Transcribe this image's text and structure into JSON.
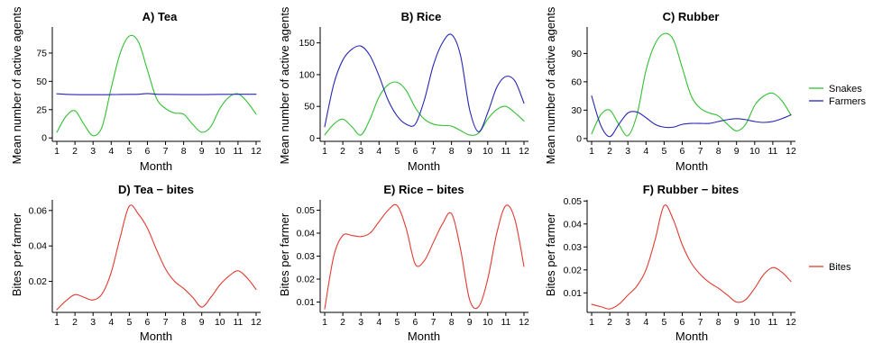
{
  "chart_data": [
    {
      "id": "tea",
      "type": "line",
      "title": "A) Tea",
      "xlabel": "Month",
      "ylabel": "Mean number of active agents",
      "x": [
        1,
        1.5,
        2,
        2.5,
        3,
        3.5,
        4,
        4.5,
        5,
        5.5,
        6,
        6.5,
        7,
        7.5,
        8,
        8.5,
        9,
        9.5,
        10,
        10.5,
        11,
        11.5,
        12
      ],
      "xticks": [
        1,
        2,
        3,
        4,
        5,
        6,
        7,
        8,
        9,
        10,
        11,
        12
      ],
      "yticks": [
        0,
        25,
        50,
        75
      ],
      "ylim": [
        -3,
        98
      ],
      "series": [
        {
          "name": "Snakes",
          "color": "#33bf33",
          "values": [
            5,
            19,
            24,
            12,
            2,
            10,
            44,
            75,
            90,
            85,
            60,
            35,
            26,
            22,
            21,
            12,
            5,
            10,
            26,
            36,
            39,
            32,
            21
          ]
        },
        {
          "name": "Farmers",
          "color": "#2626b3",
          "values": [
            39,
            38.5,
            38.3,
            38.2,
            38.2,
            38.2,
            38.3,
            38.4,
            38.5,
            38.6,
            39.2,
            38.6,
            38.5,
            38.4,
            38.3,
            38.3,
            38.3,
            38.4,
            38.5,
            38.5,
            38.6,
            38.6,
            38.6
          ]
        }
      ]
    },
    {
      "id": "rice",
      "type": "line",
      "title": "B) Rice",
      "xlabel": "Month",
      "ylabel": "Mean number of active agents",
      "x": [
        1,
        1.5,
        2,
        2.5,
        3,
        3.5,
        4,
        4.5,
        5,
        5.5,
        6,
        6.5,
        7,
        7.5,
        8,
        8.5,
        9,
        9.5,
        10,
        10.5,
        11,
        11.5,
        12
      ],
      "xticks": [
        1,
        2,
        3,
        4,
        5,
        6,
        7,
        8,
        9,
        10,
        11,
        12
      ],
      "yticks": [
        0,
        50,
        100,
        150
      ],
      "ylim": [
        -5,
        175
      ],
      "series": [
        {
          "name": "Snakes",
          "color": "#33bf33",
          "values": [
            5,
            22,
            30,
            18,
            5,
            30,
            65,
            84,
            88,
            75,
            48,
            30,
            22,
            20,
            19,
            12,
            5,
            8,
            30,
            45,
            50,
            40,
            27
          ]
        },
        {
          "name": "Farmers",
          "color": "#2626b3",
          "values": [
            18,
            85,
            123,
            140,
            145,
            130,
            98,
            60,
            35,
            22,
            22,
            60,
            115,
            150,
            163,
            130,
            45,
            10,
            40,
            80,
            97,
            90,
            55
          ]
        }
      ]
    },
    {
      "id": "rubber",
      "type": "line",
      "title": "C) Rubber",
      "xlabel": "Month",
      "ylabel": "Mean number of active agents",
      "x": [
        1,
        1.5,
        2,
        2.5,
        3,
        3.5,
        4,
        4.5,
        5,
        5.5,
        6,
        6.5,
        7,
        7.5,
        8,
        8.5,
        9,
        9.5,
        10,
        10.5,
        11,
        11.5,
        12
      ],
      "xticks": [
        1,
        2,
        3,
        4,
        5,
        6,
        7,
        8,
        9,
        10,
        11,
        12
      ],
      "yticks": [
        0,
        30,
        60,
        90
      ],
      "ylim": [
        -3,
        118
      ],
      "series": [
        {
          "name": "Snakes",
          "color": "#33bf33",
          "values": [
            5,
            25,
            30,
            15,
            3,
            25,
            72,
            100,
            111,
            105,
            75,
            45,
            32,
            27,
            24,
            15,
            8,
            15,
            35,
            45,
            48,
            40,
            25
          ]
        },
        {
          "name": "Farmers",
          "color": "#2626b3",
          "values": [
            45,
            14,
            2,
            15,
            27,
            28,
            22,
            15,
            12,
            12,
            15,
            16,
            16,
            16,
            18,
            20,
            21,
            20,
            18,
            17,
            18,
            21,
            25
          ]
        }
      ]
    },
    {
      "id": "tea-bites",
      "type": "line",
      "title": "D) Tea − bites",
      "xlabel": "Month",
      "ylabel": "Bites per farmer",
      "x": [
        1,
        1.5,
        2,
        2.5,
        3,
        3.5,
        4,
        4.5,
        5,
        5.5,
        6,
        6.5,
        7,
        7.5,
        8,
        8.5,
        9,
        9.5,
        10,
        10.5,
        11,
        11.5,
        12
      ],
      "xticks": [
        1,
        2,
        3,
        4,
        5,
        6,
        7,
        8,
        9,
        10,
        11,
        12
      ],
      "yticks": [
        0.02,
        0.04,
        0.06
      ],
      "ylim": [
        0.0025,
        0.066
      ],
      "series": [
        {
          "name": "Bites",
          "color": "#e03b30",
          "values": [
            0.004,
            0.009,
            0.0125,
            0.011,
            0.0095,
            0.013,
            0.025,
            0.045,
            0.0625,
            0.058,
            0.05,
            0.038,
            0.027,
            0.02,
            0.016,
            0.011,
            0.0055,
            0.011,
            0.018,
            0.023,
            0.026,
            0.022,
            0.0155
          ]
        }
      ]
    },
    {
      "id": "rice-bites",
      "type": "line",
      "title": "E) Rice − bites",
      "xlabel": "Month",
      "ylabel": "Bites per farmer",
      "x": [
        1,
        1.5,
        2,
        2.5,
        3,
        3.5,
        4,
        4.5,
        5,
        5.5,
        6,
        6.5,
        7,
        7.5,
        8,
        8.5,
        9,
        9.5,
        10,
        10.5,
        11,
        11.5,
        12
      ],
      "xticks": [
        1,
        2,
        3,
        4,
        5,
        6,
        7,
        8,
        9,
        10,
        11,
        12
      ],
      "yticks": [
        0.01,
        0.02,
        0.03,
        0.04,
        0.05
      ],
      "ylim": [
        0.0055,
        0.0545
      ],
      "series": [
        {
          "name": "Bites",
          "color": "#e03b30",
          "values": [
            0.007,
            0.03,
            0.039,
            0.039,
            0.0385,
            0.04,
            0.045,
            0.05,
            0.052,
            0.042,
            0.0265,
            0.028,
            0.036,
            0.044,
            0.0485,
            0.033,
            0.011,
            0.008,
            0.02,
            0.04,
            0.052,
            0.046,
            0.0255
          ]
        }
      ]
    },
    {
      "id": "rubber-bites",
      "type": "line",
      "title": "F) Rubber − bites",
      "xlabel": "Month",
      "ylabel": "Bites per farmer",
      "x": [
        1,
        1.5,
        2,
        2.5,
        3,
        3.5,
        4,
        4.5,
        5,
        5.5,
        6,
        6.5,
        7,
        7.5,
        8,
        8.5,
        9,
        9.5,
        10,
        10.5,
        11,
        11.5,
        12
      ],
      "xticks": [
        1,
        2,
        3,
        4,
        5,
        6,
        7,
        8,
        9,
        10,
        11,
        12
      ],
      "yticks": [
        0.01,
        0.02,
        0.03,
        0.04,
        0.05
      ],
      "ylim": [
        0.0015,
        0.0505
      ],
      "series": [
        {
          "name": "Bites",
          "color": "#e03b30",
          "values": [
            0.005,
            0.004,
            0.003,
            0.005,
            0.009,
            0.013,
            0.02,
            0.033,
            0.048,
            0.042,
            0.031,
            0.023,
            0.018,
            0.0145,
            0.012,
            0.009,
            0.006,
            0.007,
            0.012,
            0.018,
            0.021,
            0.019,
            0.015
          ]
        }
      ]
    }
  ],
  "legends": {
    "top": [
      {
        "label": "Snakes",
        "color": "#33bf33"
      },
      {
        "label": "Farmers",
        "color": "#2626b3"
      }
    ],
    "bottom": [
      {
        "label": "Bites",
        "color": "#e03b30"
      }
    ]
  }
}
